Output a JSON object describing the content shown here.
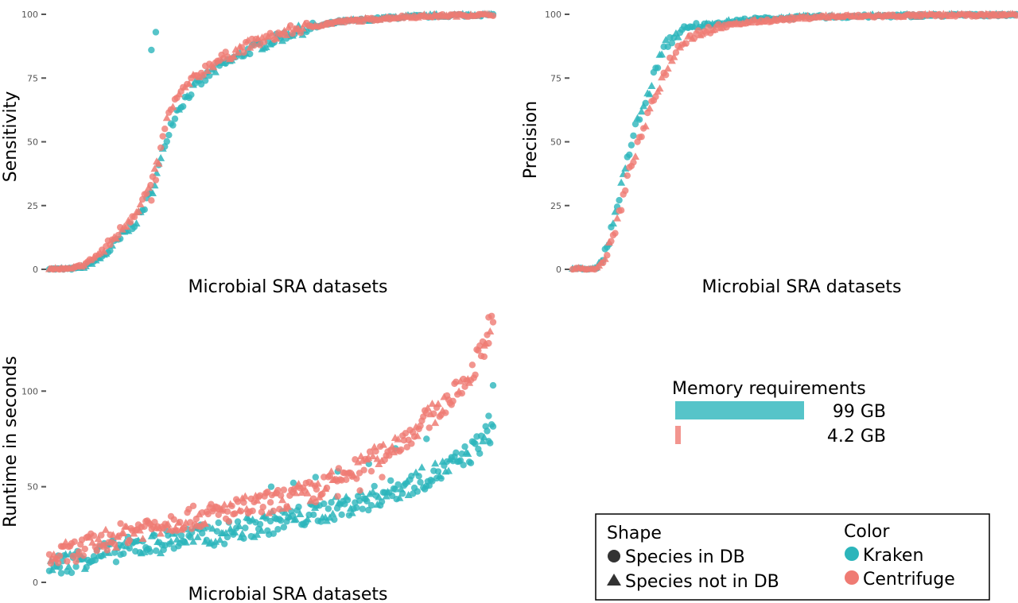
{
  "colors": {
    "kraken": "#2cb5bb",
    "centrifuge": "#ef7b73",
    "tick": "#555555",
    "legend_border": "#000000"
  },
  "chart_data": [
    {
      "id": "sensitivity",
      "type": "scatter",
      "xlabel": "Microbial SRA datasets",
      "ylabel": "Sensitivity",
      "ylim": [
        0,
        100
      ],
      "yticks": [
        0,
        25,
        50,
        75,
        100
      ],
      "ytick_labels": [
        "0",
        "25",
        "50",
        "75",
        "100"
      ],
      "x_ticks_shown": false,
      "series": [
        {
          "name": "Kraken",
          "color_key": "kraken",
          "curve": [
            [
              0,
              0
            ],
            [
              5,
              0
            ],
            [
              8,
              1
            ],
            [
              12,
              5
            ],
            [
              16,
              12
            ],
            [
              20,
              20
            ],
            [
              23,
              30
            ],
            [
              25,
              42
            ],
            [
              27,
              55
            ],
            [
              29,
              63
            ],
            [
              32,
              70
            ],
            [
              37,
              78
            ],
            [
              45,
              86
            ],
            [
              55,
              93
            ],
            [
              65,
              97
            ],
            [
              80,
              99
            ],
            [
              100,
              100
            ]
          ],
          "extra_points": [
            [
              23,
              86
            ],
            [
              24,
              93
            ]
          ]
        },
        {
          "name": "Centrifuge",
          "color_key": "centrifuge",
          "curve": [
            [
              0,
              0
            ],
            [
              5,
              0
            ],
            [
              8,
              2
            ],
            [
              12,
              7
            ],
            [
              16,
              15
            ],
            [
              20,
              24
            ],
            [
              23,
              33
            ],
            [
              25,
              45
            ],
            [
              26,
              56
            ],
            [
              28,
              65
            ],
            [
              31,
              72
            ],
            [
              36,
              80
            ],
            [
              45,
              88
            ],
            [
              55,
              94
            ],
            [
              65,
              97
            ],
            [
              80,
              99
            ],
            [
              100,
              100
            ]
          ],
          "extra_points": [
            [
              24,
              35
            ],
            [
              23,
              27
            ]
          ]
        }
      ]
    },
    {
      "id": "precision",
      "type": "scatter",
      "xlabel": "Microbial SRA datasets",
      "ylabel": "Precision",
      "ylim": [
        0,
        100
      ],
      "yticks": [
        0,
        25,
        50,
        75,
        100
      ],
      "ytick_labels": [
        "0",
        "25",
        "50",
        "75",
        "100"
      ],
      "x_ticks_shown": false,
      "series": [
        {
          "name": "Kraken",
          "color_key": "kraken",
          "curve": [
            [
              0,
              0
            ],
            [
              5,
              0
            ],
            [
              6,
              2
            ],
            [
              8,
              10
            ],
            [
              10,
              25
            ],
            [
              12,
              40
            ],
            [
              14,
              55
            ],
            [
              17,
              68
            ],
            [
              19,
              80
            ],
            [
              21,
              88
            ],
            [
              24,
              93
            ],
            [
              30,
              96
            ],
            [
              40,
              98
            ],
            [
              55,
              99
            ],
            [
              100,
              100
            ]
          ],
          "extra_points": []
        },
        {
          "name": "Centrifuge",
          "color_key": "centrifuge",
          "curve": [
            [
              0,
              0
            ],
            [
              5,
              0
            ],
            [
              7,
              3
            ],
            [
              9,
              12
            ],
            [
              11,
              25
            ],
            [
              13,
              40
            ],
            [
              16,
              55
            ],
            [
              19,
              70
            ],
            [
              22,
              82
            ],
            [
              25,
              90
            ],
            [
              30,
              94
            ],
            [
              40,
              97
            ],
            [
              55,
              99
            ],
            [
              100,
              100
            ]
          ],
          "extra_points": []
        }
      ]
    },
    {
      "id": "runtime",
      "type": "scatter",
      "xlabel": "Microbial SRA datasets",
      "ylabel": "Runtime in seconds",
      "ylim": [
        0,
        140
      ],
      "yticks": [
        0,
        50,
        100
      ],
      "ytick_labels": [
        "0",
        "50",
        "100"
      ],
      "x_ticks_shown": false,
      "series": [
        {
          "name": "Kraken",
          "color_key": "kraken",
          "curve": [
            [
              0,
              8
            ],
            [
              10,
              14
            ],
            [
              20,
              19
            ],
            [
              30,
              23
            ],
            [
              40,
              26
            ],
            [
              50,
              31
            ],
            [
              60,
              36
            ],
            [
              70,
              42
            ],
            [
              80,
              50
            ],
            [
              90,
              60
            ],
            [
              95,
              68
            ],
            [
              100,
              80
            ]
          ],
          "extra_points": [
            [
              100,
              103
            ],
            [
              99,
              87
            ],
            [
              50,
              50
            ],
            [
              55,
              52
            ],
            [
              60,
              55
            ],
            [
              65,
              58
            ],
            [
              72,
              62
            ],
            [
              78,
              70
            ],
            [
              85,
              75
            ]
          ]
        },
        {
          "name": "Centrifuge",
          "color_key": "centrifuge",
          "curve": [
            [
              0,
              12
            ],
            [
              10,
              20
            ],
            [
              20,
              28
            ],
            [
              30,
              33
            ],
            [
              40,
              37
            ],
            [
              50,
              42
            ],
            [
              60,
              48
            ],
            [
              70,
              60
            ],
            [
              80,
              75
            ],
            [
              90,
              95
            ],
            [
              95,
              108
            ],
            [
              100,
              140
            ]
          ],
          "extra_points": [
            [
              99,
              125
            ],
            [
              98,
              118
            ],
            [
              60,
              42
            ],
            [
              65,
              45
            ],
            [
              70,
              48
            ],
            [
              75,
              55
            ]
          ]
        }
      ]
    }
  ],
  "memory": {
    "title": "Memory requirements",
    "bars": [
      {
        "label": "99 GB",
        "value_gb": 99,
        "color_key": "kraken"
      },
      {
        "label": "4.2 GB",
        "value_gb": 4.2,
        "color_key": "centrifuge"
      }
    ]
  },
  "legend": {
    "shape_title": "Shape",
    "shape_items": [
      {
        "label": "Species in DB",
        "shape": "circle"
      },
      {
        "label": "Species not in DB",
        "shape": "triangle"
      }
    ],
    "color_title": "Color",
    "color_items": [
      {
        "label": "Kraken",
        "color_key": "kraken"
      },
      {
        "label": "Centrifuge",
        "color_key": "centrifuge"
      }
    ]
  }
}
